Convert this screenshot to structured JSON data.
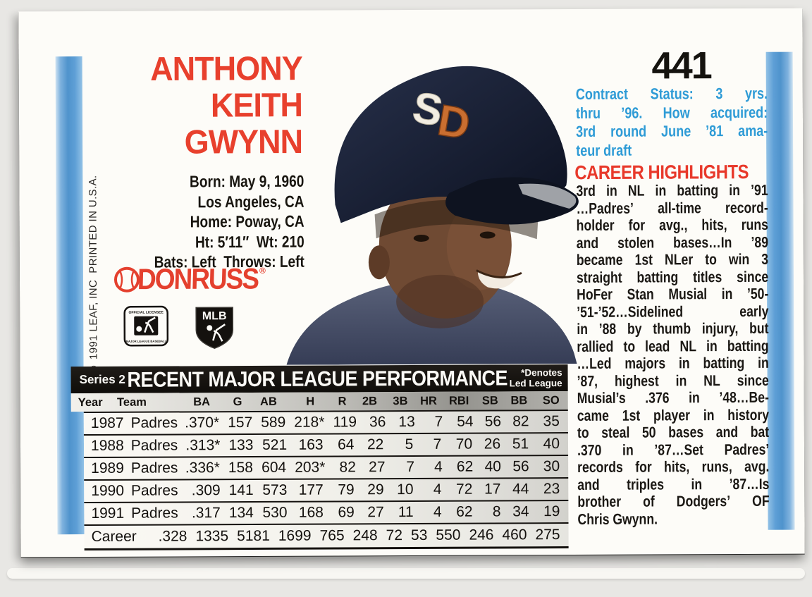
{
  "card": {
    "number": "441",
    "name_lines": [
      "ANTHONY",
      "KEITH",
      "GWYNN"
    ],
    "bio_lines": [
      "Born: May 9, 1960",
      "Los Angeles, CA",
      "Home: Poway, CA",
      "Ht: 5′11″  Wt: 210",
      "Bats: Left  Throws: Left"
    ],
    "copyright": "© 1991 LEAF, INC  PRINTED IN U.S.A.",
    "brand": {
      "donruss": "DONRUSS",
      "registered": "®",
      "mlb": "MLB",
      "licensee_top": "OFFICIAL LICENSEE",
      "licensee_bottom": "MAJOR LEAGUE BASEBALL"
    },
    "contract_lines": [
      "Contract Status: 3 yrs.",
      "thru ’96. How acquired:",
      "3rd round June ’81 ama-",
      "teur draft"
    ],
    "highlights_title": "CAREER HIGHLIGHTS",
    "highlights_lines": [
      "3rd in NL in batting in ’91",
      "…Padres’ all-time record-",
      "holder for avg., hits, runs",
      "and stolen bases…In ’89",
      "became 1st NLer to win 3",
      "straight batting titles since",
      "HoFer Stan Musial in ’50-",
      "’51-’52…Sidelined early",
      "in ’88 by thumb injury, but",
      "rallied to lead NL in batting",
      "…Led majors in batting in",
      "’87, highest in NL since",
      "Musial’s .376 in ’48…Be-",
      "came 1st player in history",
      "to steal 50 bases and bat",
      ".370 in ’87…Set Padres’",
      "records for hits, runs, avg.",
      "and triples in ’87…Is",
      "brother of Dodgers’ OF",
      "Chris Gwynn."
    ]
  },
  "stats_table": {
    "series_label": "Series 2",
    "title": "RECENT MAJOR LEAGUE PERFORMANCE",
    "denotes_lines": [
      "*Denotes",
      "Led League"
    ],
    "columns": [
      "Year",
      "Team",
      "BA",
      "G",
      "AB",
      "H",
      "R",
      "2B",
      "3B",
      "HR",
      "RBI",
      "SB",
      "BB",
      "SO"
    ],
    "rows": [
      [
        "1987",
        "Padres",
        ".370*",
        "157",
        "589",
        "218*",
        "119",
        "36",
        "13",
        "7",
        "54",
        "56",
        "82",
        "35"
      ],
      [
        "1988",
        "Padres",
        ".313*",
        "133",
        "521",
        "163",
        "64",
        "22",
        "5",
        "7",
        "70",
        "26",
        "51",
        "40"
      ],
      [
        "1989",
        "Padres",
        ".336*",
        "158",
        "604",
        "203*",
        "82",
        "27",
        "7",
        "4",
        "62",
        "40",
        "56",
        "30"
      ],
      [
        "1990",
        "Padres",
        ".309",
        "141",
        "573",
        "177",
        "79",
        "29",
        "10",
        "4",
        "72",
        "17",
        "44",
        "23"
      ],
      [
        "1991",
        "Padres",
        ".317",
        "134",
        "530",
        "168",
        "69",
        "27",
        "11",
        "4",
        "62",
        "8",
        "34",
        "19"
      ]
    ],
    "career_row": {
      "label": "Career",
      "values": [
        ".328",
        "1335",
        "5181",
        "1699",
        "765",
        "248",
        "72",
        "53",
        "550",
        "246",
        "460",
        "275"
      ]
    }
  },
  "colors": {
    "accent_red": "#e8402d",
    "accent_blue": "#2e9bd6",
    "strip_blue": "#4f93cc",
    "table_bar": "#15120e",
    "card_bg": "#fdfcf8"
  }
}
